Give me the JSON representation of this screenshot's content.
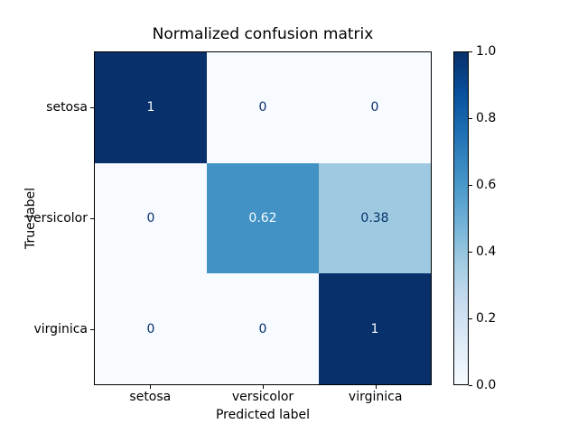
{
  "figure": {
    "title": "Normalized confusion matrix",
    "xlabel": "Predicted label",
    "ylabel": "True label"
  },
  "chart_data": {
    "type": "heatmap",
    "title": "Normalized confusion matrix",
    "xlabel": "Predicted label",
    "ylabel": "True label",
    "x_categories": [
      "setosa",
      "versicolor",
      "virginica"
    ],
    "y_categories": [
      "setosa",
      "versicolor",
      "virginica"
    ],
    "matrix": [
      [
        1,
        0,
        0
      ],
      [
        0,
        0.62,
        0.38
      ],
      [
        0,
        0,
        1
      ]
    ],
    "cell_labels": [
      [
        "1",
        "0",
        "0"
      ],
      [
        "0",
        "0.62",
        "0.38"
      ],
      [
        "0",
        "0",
        "1"
      ]
    ],
    "cell_colors": [
      [
        "#08306b",
        "#f7fbff",
        "#f7fbff"
      ],
      [
        "#f7fbff",
        "#4292c6",
        "#9ecae1"
      ],
      [
        "#f7fbff",
        "#f7fbff",
        "#08306b"
      ]
    ],
    "text_color_dark": "#08306b",
    "text_color_light": "#f7fbff",
    "text_threshold": 0.5,
    "colormap": "Blues",
    "colorbar": {
      "vmin": 0.0,
      "vmax": 1.0,
      "tick_labels_top_to_bottom": [
        "1.0",
        "0.8",
        "0.6",
        "0.4",
        "0.2",
        "0.0"
      ],
      "gradient_stops_low_to_high": [
        "#f7fbff",
        "#deebf7",
        "#c6dbef",
        "#9ecae1",
        "#6baed6",
        "#4292c6",
        "#2171b5",
        "#08519c",
        "#08306b"
      ]
    },
    "legend_position": "colorbar-right",
    "grid": false
  }
}
